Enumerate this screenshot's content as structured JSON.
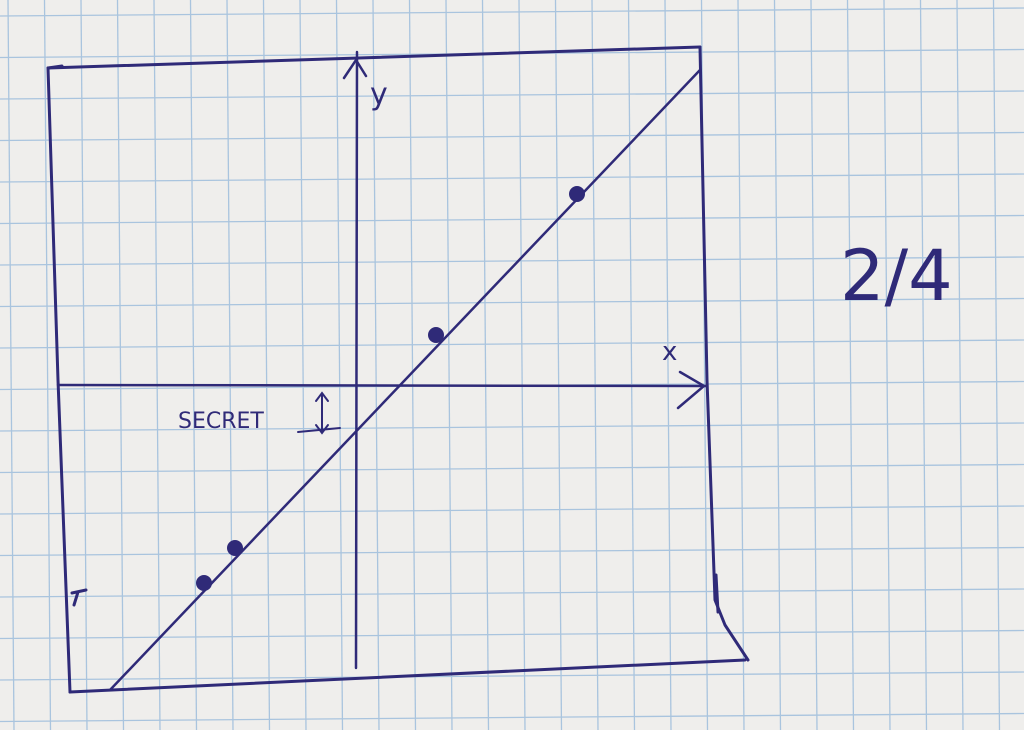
{
  "sketch": {
    "axis_x_label": "x",
    "axis_y_label": "y",
    "offset_label": "SECRET",
    "page_number": "2/4"
  },
  "colors": {
    "paper": "#efeeec",
    "grid": "#a9c4de",
    "ink": "#2f2a78"
  }
}
